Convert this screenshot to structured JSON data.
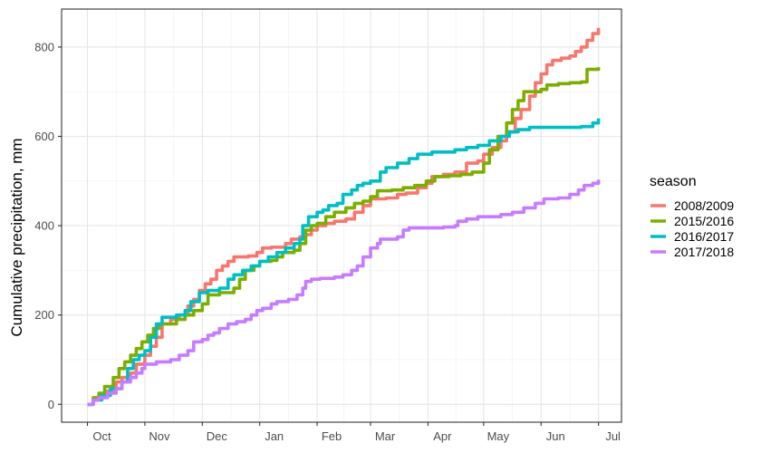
{
  "chart_data": {
    "type": "line",
    "step": true,
    "title": "",
    "xlabel": "",
    "ylabel": "Cumulative precipitation, mm",
    "xlim": [
      -0.45,
      9.3
    ],
    "ylim": [
      -40,
      885
    ],
    "x_unit": "months since start of October",
    "x_ticks": [
      {
        "label": "Oct",
        "value": 0.0
      },
      {
        "label": "Nov",
        "value": 1.0
      },
      {
        "label": "Dec",
        "value": 2.0
      },
      {
        "label": "Jan",
        "value": 3.0
      },
      {
        "label": "Feb",
        "value": 4.0
      },
      {
        "label": "Mar",
        "value": 4.93
      },
      {
        "label": "Apr",
        "value": 5.93
      },
      {
        "label": "May",
        "value": 6.9
      },
      {
        "label": "Jun",
        "value": 7.9
      },
      {
        "label": "Jul",
        "value": 8.9
      }
    ],
    "y_ticks": [
      0,
      200,
      400,
      600,
      800
    ],
    "grid": true,
    "legend": {
      "title": "season",
      "position": "right"
    },
    "series": [
      {
        "name": "2008/2009",
        "color": "#F8766D",
        "points": [
          [
            0.0,
            0
          ],
          [
            0.1,
            10
          ],
          [
            0.2,
            20
          ],
          [
            0.35,
            30
          ],
          [
            0.5,
            50
          ],
          [
            0.6,
            60
          ],
          [
            0.75,
            70
          ],
          [
            0.85,
            90
          ],
          [
            1.0,
            110
          ],
          [
            1.1,
            130
          ],
          [
            1.2,
            150
          ],
          [
            1.3,
            180
          ],
          [
            1.45,
            190
          ],
          [
            1.6,
            200
          ],
          [
            1.75,
            220
          ],
          [
            1.85,
            235
          ],
          [
            1.95,
            255
          ],
          [
            2.05,
            270
          ],
          [
            2.15,
            280
          ],
          [
            2.25,
            300
          ],
          [
            2.35,
            310
          ],
          [
            2.45,
            320
          ],
          [
            2.55,
            330
          ],
          [
            2.8,
            332
          ],
          [
            2.95,
            340
          ],
          [
            3.05,
            350
          ],
          [
            3.2,
            352
          ],
          [
            3.45,
            360
          ],
          [
            3.55,
            370
          ],
          [
            3.7,
            375
          ],
          [
            3.8,
            380
          ],
          [
            3.9,
            390
          ],
          [
            4.0,
            400
          ],
          [
            4.15,
            405
          ],
          [
            4.3,
            410
          ],
          [
            4.5,
            415
          ],
          [
            4.65,
            430
          ],
          [
            4.8,
            445
          ],
          [
            4.93,
            460
          ],
          [
            5.2,
            462
          ],
          [
            5.4,
            470
          ],
          [
            5.55,
            473
          ],
          [
            5.75,
            485
          ],
          [
            5.9,
            495
          ],
          [
            6.0,
            510
          ],
          [
            6.2,
            515
          ],
          [
            6.4,
            520
          ],
          [
            6.6,
            540
          ],
          [
            6.8,
            545
          ],
          [
            6.9,
            560
          ],
          [
            7.05,
            575
          ],
          [
            7.2,
            590
          ],
          [
            7.3,
            610
          ],
          [
            7.45,
            640
          ],
          [
            7.55,
            660
          ],
          [
            7.7,
            690
          ],
          [
            7.8,
            720
          ],
          [
            7.9,
            740
          ],
          [
            8.0,
            760
          ],
          [
            8.1,
            770
          ],
          [
            8.25,
            775
          ],
          [
            8.4,
            780
          ],
          [
            8.5,
            790
          ],
          [
            8.6,
            800
          ],
          [
            8.7,
            815
          ],
          [
            8.8,
            830
          ],
          [
            8.9,
            843
          ]
        ]
      },
      {
        "name": "2015/2016",
        "color": "#7CAE00",
        "points": [
          [
            0.0,
            0
          ],
          [
            0.1,
            15
          ],
          [
            0.2,
            25
          ],
          [
            0.3,
            40
          ],
          [
            0.45,
            60
          ],
          [
            0.55,
            80
          ],
          [
            0.65,
            95
          ],
          [
            0.75,
            110
          ],
          [
            0.85,
            125
          ],
          [
            0.95,
            140
          ],
          [
            1.05,
            155
          ],
          [
            1.15,
            170
          ],
          [
            1.25,
            180
          ],
          [
            1.4,
            180
          ],
          [
            1.55,
            190
          ],
          [
            1.7,
            200
          ],
          [
            1.85,
            210
          ],
          [
            2.0,
            225
          ],
          [
            2.1,
            245
          ],
          [
            2.3,
            250
          ],
          [
            2.55,
            260
          ],
          [
            2.65,
            280
          ],
          [
            2.75,
            300
          ],
          [
            2.9,
            310
          ],
          [
            3.0,
            320
          ],
          [
            3.2,
            322
          ],
          [
            3.3,
            330
          ],
          [
            3.4,
            340
          ],
          [
            3.6,
            345
          ],
          [
            3.7,
            360
          ],
          [
            3.8,
            390
          ],
          [
            3.9,
            400
          ],
          [
            4.0,
            405
          ],
          [
            4.15,
            420
          ],
          [
            4.3,
            430
          ],
          [
            4.5,
            440
          ],
          [
            4.65,
            450
          ],
          [
            4.8,
            455
          ],
          [
            4.93,
            465
          ],
          [
            5.05,
            478
          ],
          [
            5.3,
            480
          ],
          [
            5.5,
            485
          ],
          [
            5.7,
            490
          ],
          [
            5.9,
            500
          ],
          [
            6.05,
            510
          ],
          [
            6.3,
            512
          ],
          [
            6.5,
            515
          ],
          [
            6.7,
            520
          ],
          [
            6.9,
            540
          ],
          [
            7.0,
            570
          ],
          [
            7.15,
            600
          ],
          [
            7.3,
            630
          ],
          [
            7.4,
            660
          ],
          [
            7.5,
            680
          ],
          [
            7.6,
            700
          ],
          [
            7.9,
            705
          ],
          [
            8.0,
            715
          ],
          [
            8.2,
            718
          ],
          [
            8.4,
            720
          ],
          [
            8.6,
            722
          ],
          [
            8.7,
            750
          ],
          [
            8.9,
            755
          ]
        ]
      },
      {
        "name": "2016/2017",
        "color": "#00BFC4",
        "points": [
          [
            0.0,
            0
          ],
          [
            0.1,
            10
          ],
          [
            0.25,
            20
          ],
          [
            0.4,
            35
          ],
          [
            0.6,
            50
          ],
          [
            0.7,
            80
          ],
          [
            0.8,
            100
          ],
          [
            0.9,
            110
          ],
          [
            1.0,
            120
          ],
          [
            1.1,
            150
          ],
          [
            1.2,
            180
          ],
          [
            1.3,
            195
          ],
          [
            1.55,
            200
          ],
          [
            1.7,
            210
          ],
          [
            1.8,
            230
          ],
          [
            1.95,
            250
          ],
          [
            2.1,
            255
          ],
          [
            2.3,
            260
          ],
          [
            2.45,
            280
          ],
          [
            2.55,
            290
          ],
          [
            2.7,
            300
          ],
          [
            2.85,
            310
          ],
          [
            3.0,
            320
          ],
          [
            3.15,
            330
          ],
          [
            3.3,
            340
          ],
          [
            3.45,
            350
          ],
          [
            3.6,
            360
          ],
          [
            3.7,
            370
          ],
          [
            3.75,
            400
          ],
          [
            3.85,
            420
          ],
          [
            4.0,
            430
          ],
          [
            4.1,
            435
          ],
          [
            4.2,
            445
          ],
          [
            4.35,
            450
          ],
          [
            4.45,
            470
          ],
          [
            4.6,
            480
          ],
          [
            4.7,
            490
          ],
          [
            4.8,
            495
          ],
          [
            4.93,
            500
          ],
          [
            5.1,
            520
          ],
          [
            5.2,
            530
          ],
          [
            5.4,
            540
          ],
          [
            5.6,
            550
          ],
          [
            5.75,
            560
          ],
          [
            6.0,
            565
          ],
          [
            6.4,
            570
          ],
          [
            6.6,
            575
          ],
          [
            6.8,
            580
          ],
          [
            7.0,
            590
          ],
          [
            7.2,
            600
          ],
          [
            7.35,
            610
          ],
          [
            7.5,
            615
          ],
          [
            7.7,
            620
          ],
          [
            8.0,
            620
          ],
          [
            8.3,
            620
          ],
          [
            8.6,
            622
          ],
          [
            8.8,
            630
          ],
          [
            8.9,
            640
          ]
        ]
      },
      {
        "name": "2017/2018",
        "color": "#C77CFF",
        "points": [
          [
            0.0,
            0
          ],
          [
            0.1,
            10
          ],
          [
            0.2,
            15
          ],
          [
            0.35,
            25
          ],
          [
            0.5,
            35
          ],
          [
            0.6,
            50
          ],
          [
            0.75,
            60
          ],
          [
            0.85,
            70
          ],
          [
            0.95,
            80
          ],
          [
            1.0,
            90
          ],
          [
            1.2,
            95
          ],
          [
            1.45,
            100
          ],
          [
            1.6,
            110
          ],
          [
            1.75,
            120
          ],
          [
            1.85,
            140
          ],
          [
            2.0,
            145
          ],
          [
            2.1,
            155
          ],
          [
            2.2,
            160
          ],
          [
            2.3,
            170
          ],
          [
            2.45,
            180
          ],
          [
            2.6,
            185
          ],
          [
            2.75,
            190
          ],
          [
            2.85,
            200
          ],
          [
            2.95,
            210
          ],
          [
            3.05,
            215
          ],
          [
            3.2,
            225
          ],
          [
            3.3,
            230
          ],
          [
            3.5,
            235
          ],
          [
            3.65,
            245
          ],
          [
            3.75,
            260
          ],
          [
            3.8,
            275
          ],
          [
            3.9,
            280
          ],
          [
            4.05,
            282
          ],
          [
            4.3,
            285
          ],
          [
            4.45,
            290
          ],
          [
            4.6,
            300
          ],
          [
            4.7,
            310
          ],
          [
            4.8,
            330
          ],
          [
            4.93,
            350
          ],
          [
            5.05,
            360
          ],
          [
            5.1,
            370
          ],
          [
            5.4,
            375
          ],
          [
            5.5,
            390
          ],
          [
            5.6,
            395
          ],
          [
            5.8,
            395
          ],
          [
            6.2,
            397
          ],
          [
            6.4,
            400
          ],
          [
            6.45,
            410
          ],
          [
            6.6,
            415
          ],
          [
            6.8,
            420
          ],
          [
            7.0,
            420
          ],
          [
            7.2,
            425
          ],
          [
            7.4,
            430
          ],
          [
            7.6,
            440
          ],
          [
            7.8,
            450
          ],
          [
            7.95,
            460
          ],
          [
            8.2,
            462
          ],
          [
            8.4,
            470
          ],
          [
            8.55,
            480
          ],
          [
            8.65,
            490
          ],
          [
            8.8,
            495
          ],
          [
            8.9,
            503
          ]
        ]
      }
    ]
  }
}
